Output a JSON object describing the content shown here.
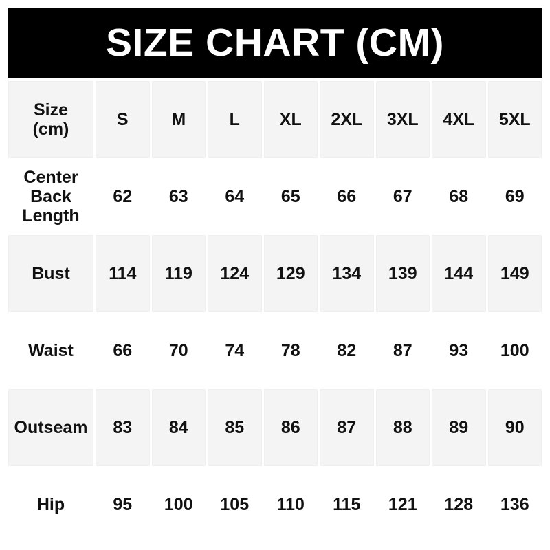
{
  "header": {
    "title": "SIZE CHART (CM)"
  },
  "table": {
    "corner": {
      "line1": "Size",
      "line2": "(cm)"
    },
    "sizes": [
      "S",
      "M",
      "L",
      "XL",
      "2XL",
      "3XL",
      "4XL",
      "5XL"
    ]
  },
  "chart_data": {
    "type": "table",
    "title": "SIZE CHART (CM)",
    "unit": "cm",
    "columns": [
      "Size (cm)",
      "S",
      "M",
      "L",
      "XL",
      "2XL",
      "3XL",
      "4XL",
      "5XL"
    ],
    "rows": [
      {
        "label": "Center Back Length",
        "values": [
          62,
          63,
          64,
          65,
          66,
          67,
          68,
          69
        ]
      },
      {
        "label": "Bust",
        "values": [
          114,
          119,
          124,
          129,
          134,
          139,
          144,
          149
        ]
      },
      {
        "label": "Waist",
        "values": [
          66,
          70,
          74,
          78,
          82,
          87,
          93,
          100
        ]
      },
      {
        "label": "Outseam",
        "values": [
          83,
          84,
          85,
          86,
          87,
          88,
          89,
          90
        ]
      },
      {
        "label": "Hip",
        "values": [
          95,
          100,
          105,
          110,
          115,
          121,
          128,
          136
        ]
      }
    ]
  },
  "colors": {
    "banner_bg": "#000000",
    "banner_text": "#ffffff",
    "cell_bg": "#f4f4f4",
    "text": "#111111",
    "page_bg": "#ffffff"
  }
}
